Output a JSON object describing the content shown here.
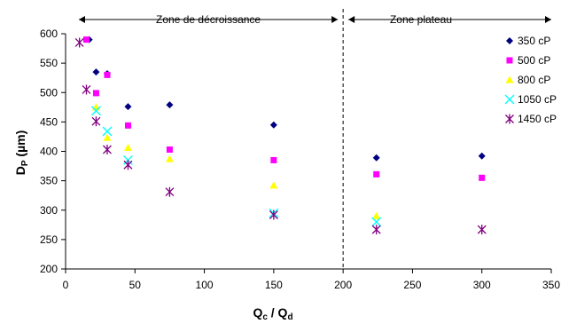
{
  "chart_data": {
    "type": "scatter",
    "title": "",
    "xlabel": {
      "main": "Q",
      "sub1": "c",
      "sep": " / Q",
      "sub2": "d"
    },
    "ylabel": {
      "main": "D",
      "sub": "P",
      "rest": " (µm)"
    },
    "xlim": [
      0,
      350
    ],
    "ylim": [
      200,
      600
    ],
    "xticks": [
      0,
      50,
      100,
      150,
      200,
      250,
      300,
      350
    ],
    "yticks": [
      200,
      250,
      300,
      350,
      400,
      450,
      500,
      550,
      600
    ],
    "grid": false,
    "legend_position": "right",
    "divider_x": 200,
    "annotations": {
      "left_zone": "Zone de décroissance",
      "right_zone": "Zone plateau"
    },
    "series": [
      {
        "name": "350 cP",
        "marker": "diamond",
        "color": "#000080",
        "x": [
          17,
          22,
          30,
          45,
          75,
          150,
          224,
          300
        ],
        "y": [
          590,
          535,
          532,
          476,
          479,
          445,
          389,
          392
        ]
      },
      {
        "name": "500 cP",
        "marker": "square",
        "color": "#FF00FF",
        "x": [
          15,
          22,
          30,
          45,
          75,
          150,
          224,
          300
        ],
        "y": [
          590,
          499,
          530,
          444,
          403,
          385,
          361,
          355
        ]
      },
      {
        "name": "800 cP",
        "marker": "triangle",
        "color": "#FFFF00",
        "x": [
          22,
          30,
          45,
          75,
          150,
          224
        ],
        "y": [
          475,
          423,
          406,
          387,
          342,
          290
        ]
      },
      {
        "name": "1050 cP",
        "marker": "x",
        "color": "#00FFFF",
        "x": [
          22,
          30,
          45,
          150,
          224
        ],
        "y": [
          469,
          434,
          385,
          295,
          280
        ]
      },
      {
        "name": "1450 cP",
        "marker": "star",
        "color": "#800080",
        "x": [
          10,
          15,
          22,
          30,
          45,
          75,
          150,
          224,
          300
        ],
        "y": [
          585,
          505,
          451,
          403,
          377,
          331,
          292,
          267,
          267
        ]
      }
    ]
  }
}
